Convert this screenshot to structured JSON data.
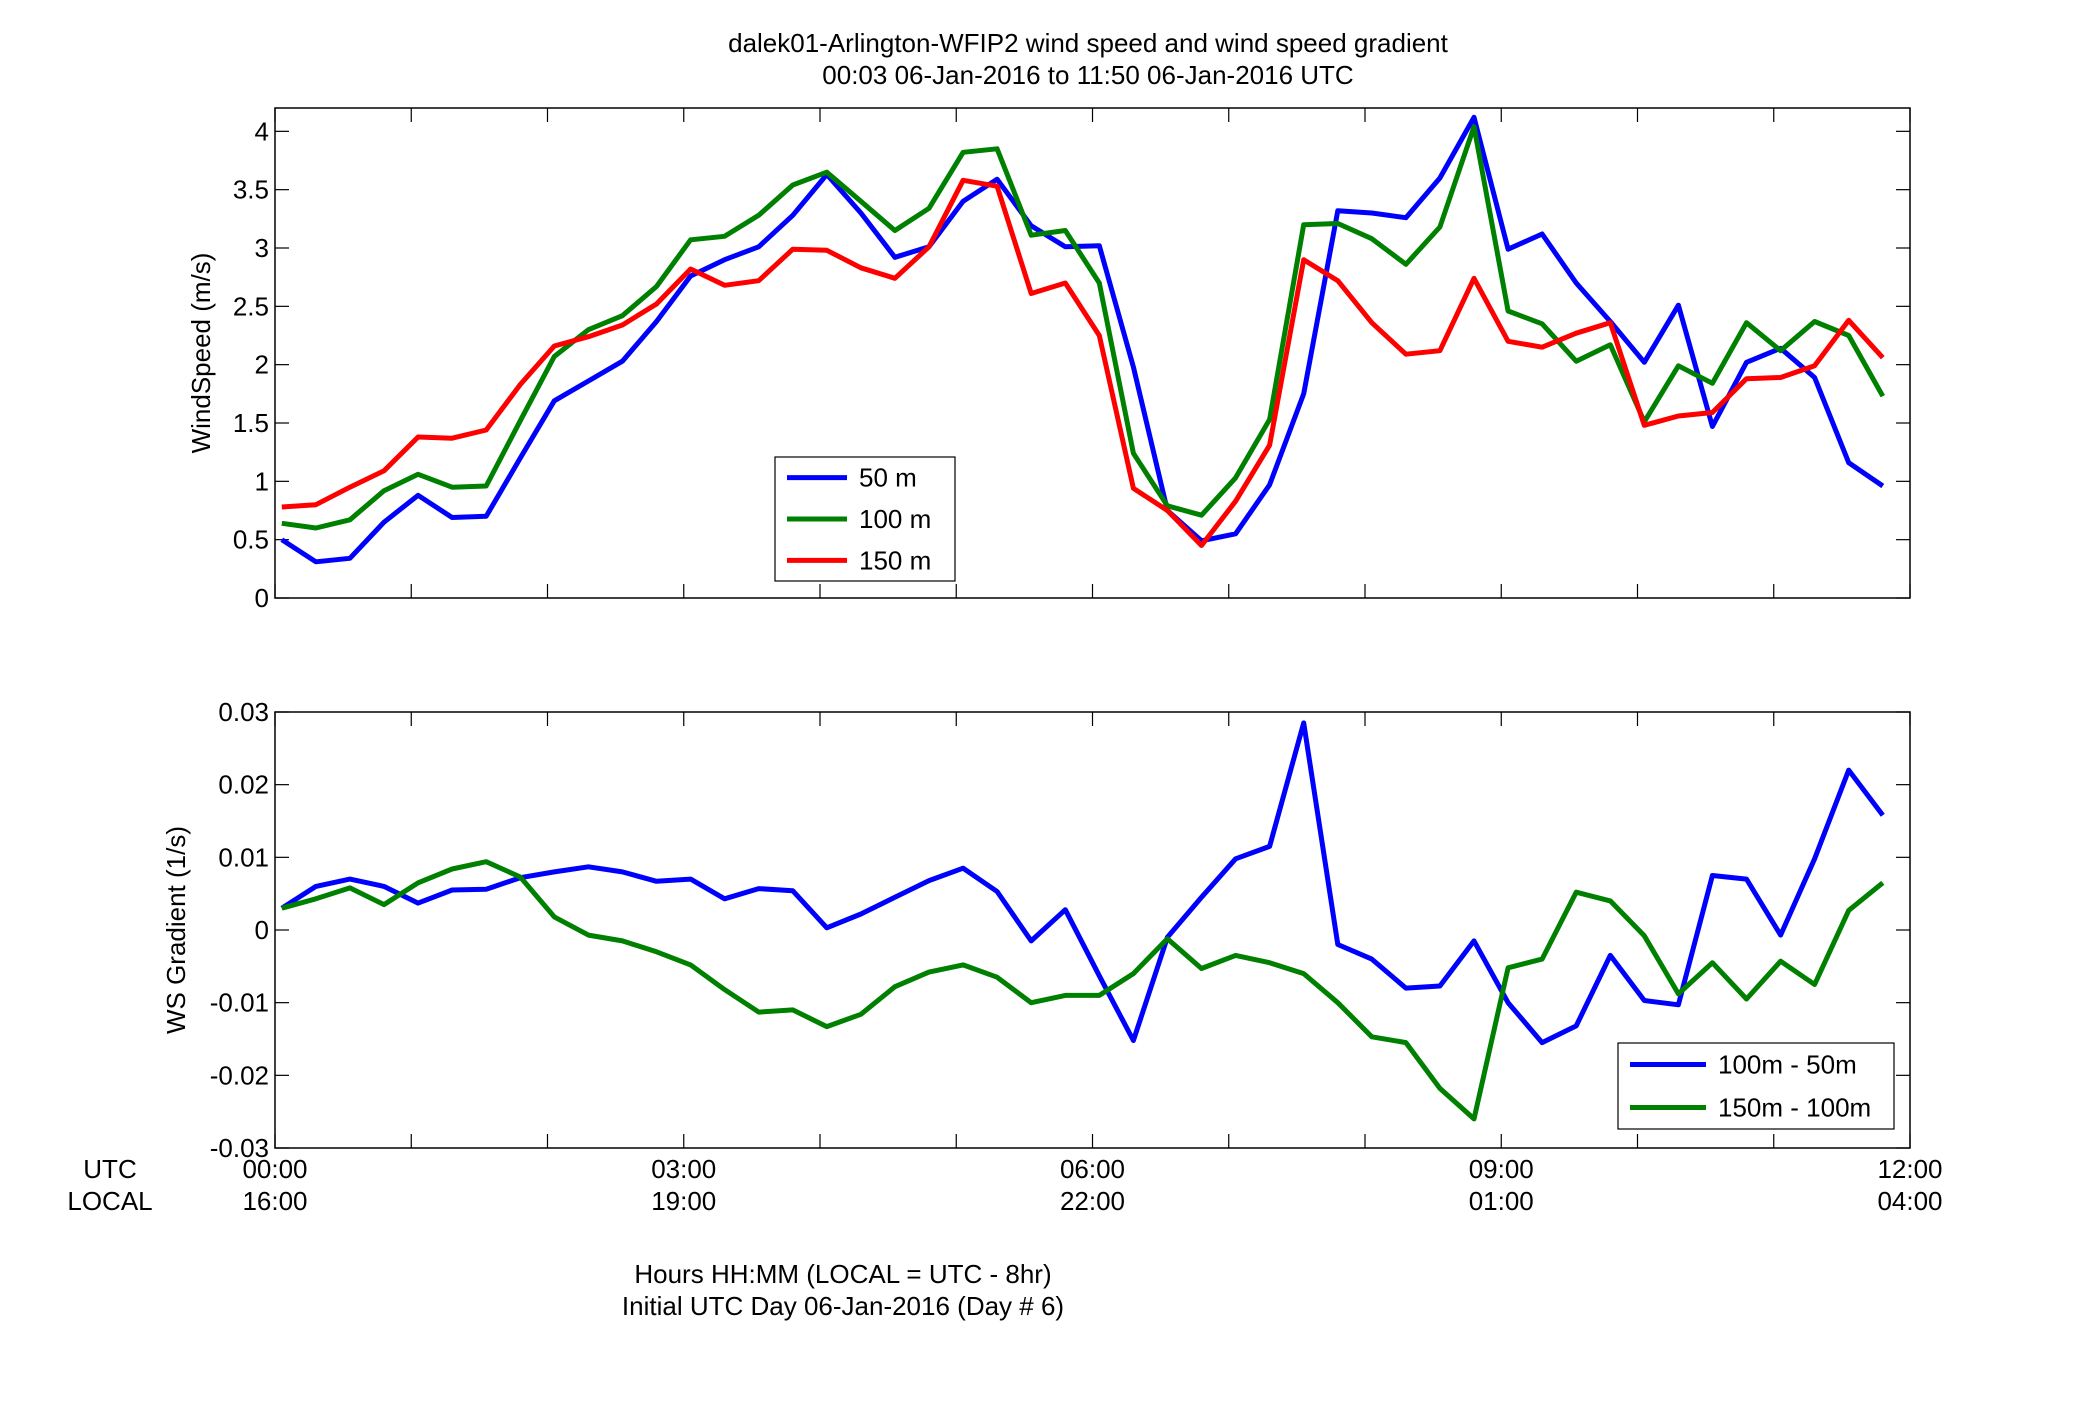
{
  "figure": {
    "title_line1": "dalek01-Arlington-WFIP2  wind speed and wind speed gradient",
    "title_line2": "00:03 06-Jan-2016 to 11:50 06-Jan-2016  UTC",
    "row_label_utc": "UTC",
    "row_label_local": "LOCAL",
    "xlabel_line1": "Hours HH:MM  (LOCAL = UTC - 8hr)",
    "xlabel_line2": "Initial UTC Day 06-Jan-2016 (Day # 6)",
    "xtick_values": [
      0,
      3,
      6,
      9,
      12
    ],
    "xtick_labels_utc": [
      "00:00",
      "03:00",
      "06:00",
      "09:00",
      "12:00"
    ],
    "xtick_labels_local": [
      "16:00",
      "19:00",
      "22:00",
      "01:00",
      "04:00"
    ],
    "xlim": [
      0,
      12
    ]
  },
  "chart_data": [
    {
      "type": "line",
      "ylabel": "WindSpeed (m/s)",
      "xlabel": "",
      "xlim": [
        0,
        12
      ],
      "ylim": [
        0,
        4.2
      ],
      "yticks": [
        0,
        0.5,
        1,
        1.5,
        2,
        2.5,
        3,
        3.5,
        4
      ],
      "ytick_labels": [
        "0",
        "0.5",
        "1",
        "1.5",
        "2",
        "2.5",
        "3",
        "3.5",
        "4"
      ],
      "grid": false,
      "legend_position": "bottom-center",
      "x": [
        0.05,
        0.3,
        0.55,
        0.8,
        1.05,
        1.3,
        1.55,
        1.8,
        2.05,
        2.3,
        2.55,
        2.8,
        3.05,
        3.3,
        3.55,
        3.8,
        4.05,
        4.3,
        4.55,
        4.8,
        5.05,
        5.3,
        5.55,
        5.8,
        6.05,
        6.3,
        6.55,
        6.8,
        7.05,
        7.3,
        7.55,
        7.8,
        8.05,
        8.3,
        8.55,
        8.8,
        9.05,
        9.3,
        9.55,
        9.8,
        10.05,
        10.3,
        10.55,
        10.8,
        11.05,
        11.3,
        11.55,
        11.8
      ],
      "series": [
        {
          "name": "50 m",
          "color": "#0000ff",
          "values": [
            0.5,
            0.31,
            0.34,
            0.65,
            0.88,
            0.69,
            0.7,
            1.2,
            1.69,
            1.86,
            2.03,
            2.37,
            2.76,
            2.9,
            3.01,
            3.28,
            3.63,
            3.3,
            2.92,
            3.01,
            3.4,
            3.59,
            3.19,
            3.01,
            3.02,
            1.98,
            0.75,
            0.49,
            0.55,
            0.97,
            1.75,
            3.32,
            3.3,
            3.26,
            3.6,
            4.12,
            2.99,
            3.12,
            2.7,
            2.37,
            2.02,
            2.51,
            1.47,
            2.02,
            2.14,
            1.89,
            1.16,
            0.96
          ]
        },
        {
          "name": "100 m",
          "color": "#008000",
          "values": [
            0.64,
            0.6,
            0.67,
            0.92,
            1.06,
            0.95,
            0.96,
            1.52,
            2.07,
            2.3,
            2.42,
            2.67,
            3.07,
            3.1,
            3.28,
            3.54,
            3.65,
            3.4,
            3.15,
            3.34,
            3.82,
            3.85,
            3.11,
            3.15,
            2.7,
            1.24,
            0.79,
            0.71,
            1.03,
            1.53,
            3.2,
            3.21,
            3.08,
            2.86,
            3.18,
            4.04,
            2.46,
            2.35,
            2.03,
            2.17,
            1.51,
            1.99,
            1.84,
            2.36,
            2.12,
            2.37,
            2.25,
            1.73
          ]
        },
        {
          "name": "150 m",
          "color": "#ff0000",
          "values": [
            0.78,
            0.8,
            0.95,
            1.09,
            1.38,
            1.37,
            1.44,
            1.83,
            2.16,
            2.24,
            2.34,
            2.52,
            2.82,
            2.68,
            2.72,
            2.99,
            2.98,
            2.83,
            2.74,
            3.01,
            3.58,
            3.53,
            2.61,
            2.7,
            2.25,
            0.94,
            0.75,
            0.45,
            0.83,
            1.31,
            2.9,
            2.72,
            2.36,
            2.09,
            2.12,
            2.74,
            2.2,
            2.15,
            2.27,
            2.36,
            1.48,
            1.56,
            1.59,
            1.88,
            1.89,
            1.99,
            2.38,
            2.06
          ]
        }
      ]
    },
    {
      "type": "line",
      "ylabel": "WS Gradient (1/s)",
      "xlabel": "",
      "xlim": [
        0,
        12
      ],
      "ylim": [
        -0.03,
        0.03
      ],
      "yticks": [
        -0.03,
        -0.02,
        -0.01,
        0,
        0.01,
        0.02,
        0.03
      ],
      "ytick_labels": [
        "-0.03",
        "-0.02",
        "-0.01",
        "0",
        "0.01",
        "0.02",
        "0.03"
      ],
      "grid": false,
      "legend_position": "bottom-right",
      "x": [
        0.05,
        0.3,
        0.55,
        0.8,
        1.05,
        1.3,
        1.55,
        1.8,
        2.05,
        2.3,
        2.55,
        2.8,
        3.05,
        3.3,
        3.55,
        3.8,
        4.05,
        4.3,
        4.55,
        4.8,
        5.05,
        5.3,
        5.55,
        5.8,
        6.05,
        6.3,
        6.55,
        6.8,
        7.05,
        7.3,
        7.55,
        7.8,
        8.05,
        8.3,
        8.55,
        8.8,
        9.05,
        9.3,
        9.55,
        9.8,
        10.05,
        10.3,
        10.55,
        10.8,
        11.05,
        11.3,
        11.55,
        11.8
      ],
      "series": [
        {
          "name": "100m - 50m",
          "color": "#0000ff",
          "values": [
            0.003,
            0.006,
            0.007,
            0.006,
            0.0037,
            0.0055,
            0.0056,
            0.0072,
            0.008,
            0.0087,
            0.008,
            0.0067,
            0.007,
            0.0043,
            0.0057,
            0.0054,
            0.0003,
            0.0022,
            0.0045,
            0.0068,
            0.0085,
            0.0053,
            -0.0015,
            0.0028,
            -0.0063,
            -0.0152,
            -0.001,
            0.0045,
            0.0098,
            0.0115,
            0.0285,
            -0.002,
            -0.004,
            -0.008,
            -0.0077,
            -0.0015,
            -0.01,
            -0.0155,
            -0.0132,
            -0.0035,
            -0.0097,
            -0.0103,
            0.0075,
            0.007,
            -0.0007,
            0.0098,
            0.022,
            0.0158
          ]
        },
        {
          "name": "150m - 100m",
          "color": "#008000",
          "values": [
            0.003,
            0.0043,
            0.0058,
            0.0035,
            0.0065,
            0.0084,
            0.0094,
            0.0073,
            0.0018,
            -0.0007,
            -0.0015,
            -0.003,
            -0.0048,
            -0.0082,
            -0.0113,
            -0.011,
            -0.0133,
            -0.0116,
            -0.0078,
            -0.0058,
            -0.0048,
            -0.0065,
            -0.01,
            -0.009,
            -0.009,
            -0.006,
            -0.0012,
            -0.0053,
            -0.0035,
            -0.0045,
            -0.006,
            -0.01,
            -0.0147,
            -0.0155,
            -0.0218,
            -0.026,
            -0.0052,
            -0.004,
            0.0052,
            0.004,
            -0.0008,
            -0.0088,
            -0.0045,
            -0.0095,
            -0.0043,
            -0.0075,
            0.0027,
            0.0065
          ]
        }
      ]
    }
  ]
}
